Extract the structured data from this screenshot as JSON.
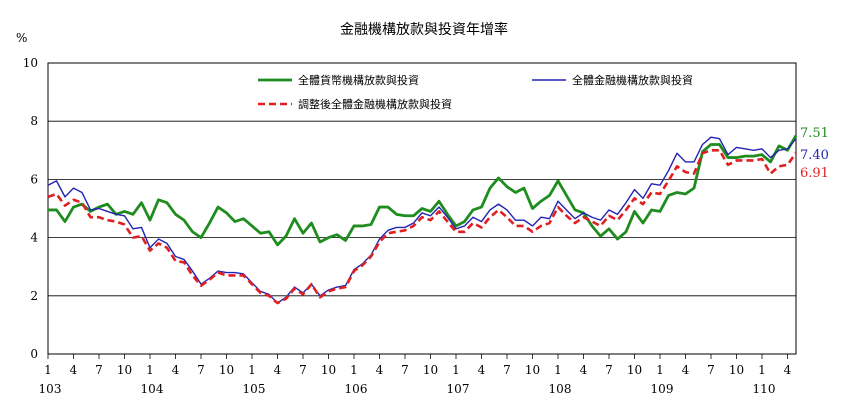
{
  "chart_data": {
    "type": "line",
    "title": "金融機構放款與投資年增率",
    "ylabel": "%",
    "xlabel": "",
    "ylim": [
      0,
      10
    ],
    "y_ticks": [
      "0",
      "2",
      "4",
      "6",
      "8",
      "10"
    ],
    "x_month_ticks": [
      "1",
      "4",
      "7",
      "10",
      "1",
      "4",
      "7",
      "10",
      "1",
      "4",
      "7",
      "10",
      "1",
      "4",
      "7",
      "10",
      "1",
      "4",
      "7",
      "10",
      "1",
      "4",
      "7",
      "10",
      "1",
      "4",
      "7",
      "10",
      "1",
      "4"
    ],
    "x_year_labels": [
      "103",
      "104",
      "105",
      "106",
      "107",
      "108",
      "109",
      "110"
    ],
    "x_start": "103/1",
    "x_end": "110/4",
    "grid": "horizontal",
    "legend_position": "top",
    "series": [
      {
        "name": "全體貨幣機構放款與投資",
        "color": "#1e8c1e",
        "dash": "solid",
        "end_label": "7.51",
        "values": [
          4.95,
          4.95,
          4.55,
          5.05,
          5.15,
          4.9,
          5.05,
          5.15,
          4.8,
          4.9,
          4.8,
          5.2,
          4.6,
          5.3,
          5.2,
          4.8,
          4.6,
          4.2,
          4.0,
          4.5,
          5.05,
          4.85,
          4.55,
          4.65,
          4.4,
          4.15,
          4.2,
          3.75,
          4.05,
          4.65,
          4.15,
          4.5,
          3.85,
          4.0,
          4.1,
          3.9,
          4.4,
          4.4,
          4.45,
          5.05,
          5.05,
          4.8,
          4.75,
          4.75,
          5.0,
          4.9,
          5.25,
          4.8,
          4.4,
          4.55,
          4.95,
          5.05,
          5.7,
          6.05,
          5.75,
          5.55,
          5.7,
          5.0,
          5.25,
          5.45,
          5.95,
          5.45,
          4.95,
          4.85,
          4.4,
          4.05,
          4.3,
          3.95,
          4.2,
          4.9,
          4.5,
          4.95,
          4.9,
          5.45,
          5.55,
          5.5,
          5.7,
          6.95,
          7.2,
          7.2,
          6.75,
          6.75,
          6.8,
          6.8,
          6.85,
          6.6,
          7.15,
          7.0,
          7.51
        ]
      },
      {
        "name": "全體金融機構放款與投資",
        "color": "#2323b4",
        "dash": "solid",
        "end_label": "7.40",
        "values": [
          5.8,
          5.95,
          5.4,
          5.7,
          5.55,
          4.95,
          5.0,
          4.9,
          4.8,
          4.75,
          4.3,
          4.35,
          3.65,
          3.95,
          3.8,
          3.35,
          3.25,
          2.85,
          2.4,
          2.6,
          2.85,
          2.8,
          2.8,
          2.75,
          2.45,
          2.15,
          2.05,
          1.75,
          1.95,
          2.3,
          2.1,
          2.4,
          2.0,
          2.2,
          2.3,
          2.35,
          2.9,
          3.1,
          3.4,
          3.95,
          4.25,
          4.35,
          4.35,
          4.5,
          4.85,
          4.75,
          5.05,
          4.7,
          4.3,
          4.4,
          4.7,
          4.55,
          4.95,
          5.15,
          4.95,
          4.6,
          4.6,
          4.4,
          4.7,
          4.65,
          5.25,
          4.95,
          4.65,
          4.85,
          4.7,
          4.6,
          4.95,
          4.8,
          5.2,
          5.65,
          5.35,
          5.85,
          5.8,
          6.3,
          6.9,
          6.6,
          6.6,
          7.2,
          7.45,
          7.4,
          6.85,
          7.1,
          7.05,
          7.0,
          7.05,
          6.75,
          7.0,
          7.05,
          7.4
        ]
      },
      {
        "name": "調整後全體金融機構放款與投資",
        "color": "#e02020",
        "dash": "dashed",
        "end_label": "6.91",
        "values": [
          5.4,
          5.5,
          5.1,
          5.3,
          5.2,
          4.7,
          4.7,
          4.6,
          4.55,
          4.45,
          4.0,
          4.05,
          3.55,
          3.8,
          3.65,
          3.2,
          3.15,
          2.7,
          2.35,
          2.55,
          2.8,
          2.7,
          2.7,
          2.7,
          2.4,
          2.1,
          2.0,
          1.75,
          1.9,
          2.25,
          2.05,
          2.4,
          1.95,
          2.15,
          2.25,
          2.3,
          2.85,
          3.05,
          3.35,
          3.85,
          4.15,
          4.2,
          4.25,
          4.4,
          4.7,
          4.6,
          4.9,
          4.55,
          4.2,
          4.2,
          4.5,
          4.35,
          4.7,
          4.95,
          4.7,
          4.4,
          4.4,
          4.2,
          4.4,
          4.5,
          5.05,
          4.75,
          4.5,
          4.7,
          4.55,
          4.4,
          4.75,
          4.6,
          4.95,
          5.35,
          5.15,
          5.55,
          5.5,
          5.95,
          6.45,
          6.25,
          6.2,
          6.9,
          7.0,
          7.0,
          6.5,
          6.65,
          6.65,
          6.65,
          6.7,
          6.2,
          6.45,
          6.5,
          6.91
        ]
      }
    ]
  }
}
